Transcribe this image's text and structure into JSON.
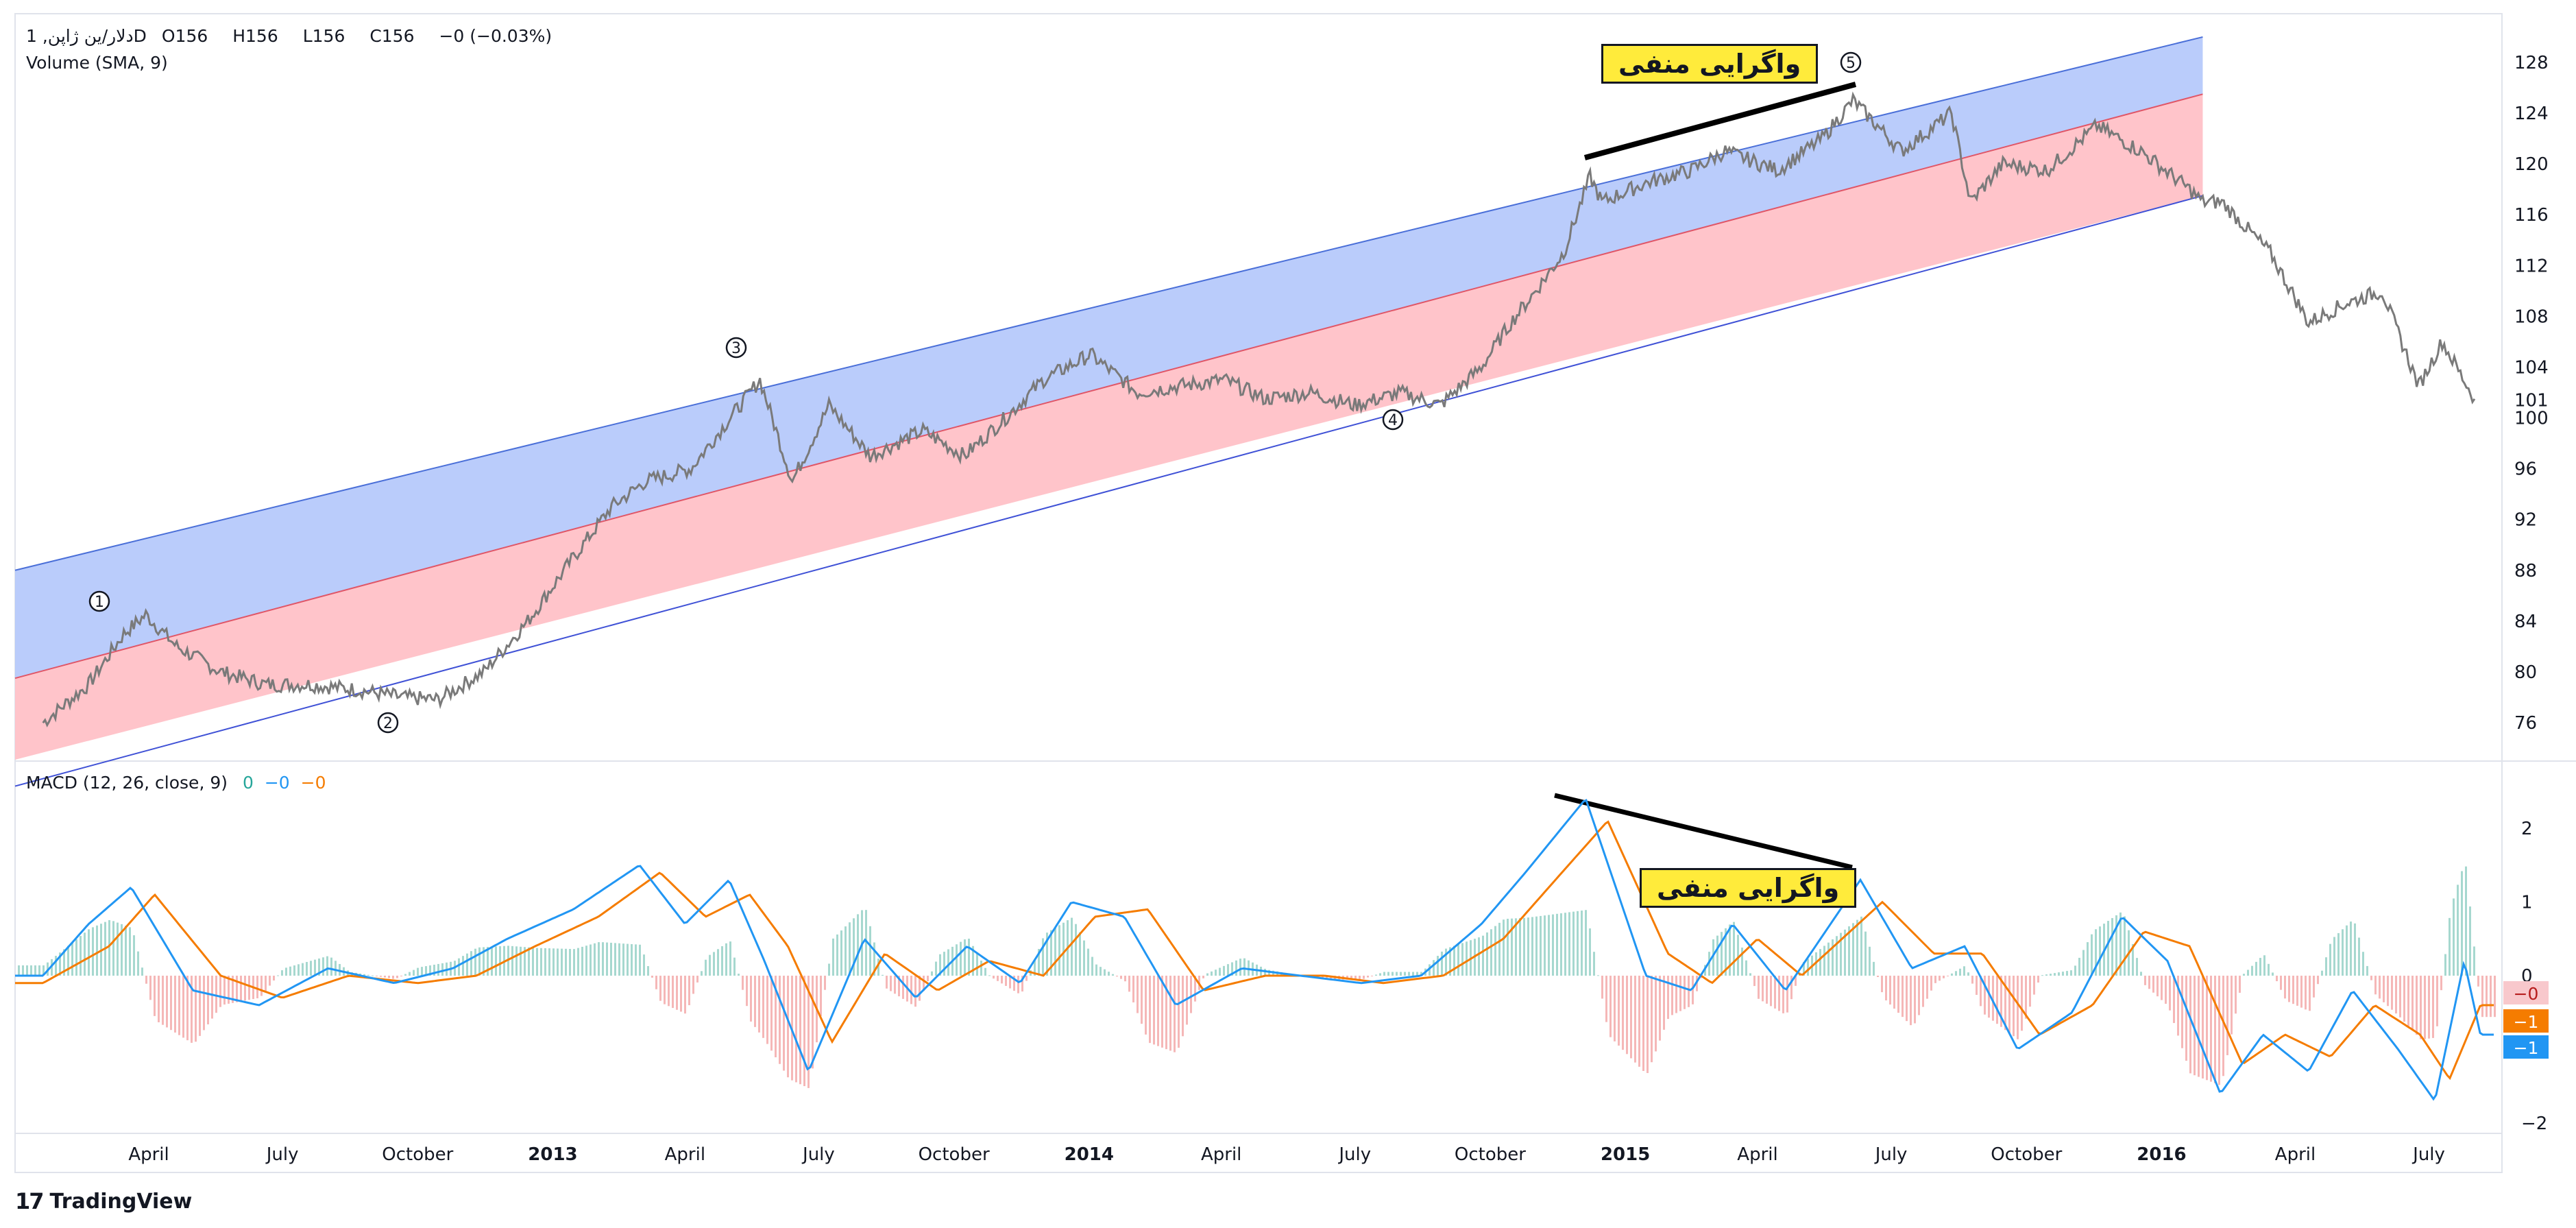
{
  "legend": {
    "symbol": "دلار/ین ژاپن, 1D",
    "o_label": "O",
    "o_value": "156",
    "h_label": "H",
    "h_value": "156",
    "l_label": "L",
    "l_value": "156",
    "c_label": "C",
    "c_value": "156",
    "change": "−0 (−0.03%)",
    "volume": "Volume (SMA, 9)",
    "macd": "MACD (12, 26, close, 9)",
    "macd_v1": "0",
    "macd_v2": "−0",
    "macd_v3": "−0"
  },
  "annotations": {
    "neg_div_top": "واگرایی منفی",
    "neg_div_bottom": "واگرایی منفی"
  },
  "footer": {
    "brand": "TradingView",
    "logo": "17"
  },
  "colors": {
    "price": "#7a7a7a",
    "channel_upper": "#b3c6fb",
    "channel_lower": "#ffc1c7",
    "macd_line": "#2196f3",
    "signal_line": "#f57c00",
    "hist_pos": "#a6d8cf",
    "hist_neg": "#f5b7b7"
  },
  "chart_data": [
    {
      "type": "line",
      "series": [
        {
          "name": "دلار/ین ژاپن",
          "x": [
            "2012-01-20",
            "2012-02-20",
            "2012-03-15",
            "2012-03-30",
            "2012-04-20",
            "2012-05-20",
            "2012-06-20",
            "2012-07-20",
            "2012-08-20",
            "2012-09-20",
            "2012-10-15",
            "2012-11-15",
            "2012-12-15",
            "2013-01-15",
            "2013-02-10",
            "2013-03-05",
            "2013-04-05",
            "2013-04-25",
            "2013-05-22",
            "2013-06-13",
            "2013-07-08",
            "2013-08-05",
            "2013-09-10",
            "2013-10-08",
            "2013-11-05",
            "2013-12-01",
            "2014-01-02",
            "2014-02-03",
            "2014-03-03",
            "2014-04-03",
            "2014-05-01",
            "2014-06-01",
            "2014-07-01",
            "2014-08-01",
            "2014-08-28",
            "2014-09-25",
            "2014-10-15",
            "2014-11-01",
            "2014-11-20",
            "2014-12-08",
            "2014-12-16",
            "2015-01-15",
            "2015-02-15",
            "2015-03-10",
            "2015-04-15",
            "2015-05-15",
            "2015-06-05",
            "2015-07-08",
            "2015-08-11",
            "2015-08-24",
            "2015-09-15",
            "2015-10-15",
            "2015-11-18",
            "2015-12-18",
            "2016-01-20",
            "2016-01-29",
            "2016-02-11",
            "2016-03-15",
            "2016-04-10",
            "2016-05-05",
            "2016-05-30",
            "2016-06-24",
            "2016-07-10",
            "2016-08-01"
          ],
          "values": [
            76,
            79,
            83,
            84.5,
            82,
            80,
            79,
            79,
            78.6,
            78,
            77.8,
            80,
            84,
            89,
            93,
            95,
            96,
            99,
            103,
            95,
            101,
            97,
            99,
            97,
            100,
            103,
            105,
            102,
            102.5,
            103,
            101.5,
            102,
            101,
            102,
            101,
            104,
            107.5,
            110,
            113,
            119,
            117,
            118.5,
            119.5,
            121,
            119.5,
            122,
            125,
            121,
            124,
            117,
            120,
            119.5,
            123,
            121,
            118,
            117,
            117,
            113,
            107.5,
            109,
            110,
            102.5,
            106,
            101.5
          ]
        }
      ],
      "y_ticks": [
        76,
        80,
        84,
        88,
        92,
        96,
        100,
        104,
        108,
        112,
        116,
        120,
        124,
        128
      ],
      "last_value": "101",
      "x_ticks": [
        "April",
        "July",
        "October",
        "2013",
        "April",
        "July",
        "October",
        "2014",
        "April",
        "July",
        "October",
        "2015",
        "April",
        "July",
        "October",
        "2016",
        "April",
        "July"
      ],
      "wave_labels": [
        "1",
        "2",
        "3",
        "4",
        "5"
      ],
      "channel": {
        "upper_start": 88,
        "upper_end": 130,
        "mid_start": 79.5,
        "mid_end": 125.5,
        "lower_start": 71,
        "lower_end": 117.5
      }
    },
    {
      "type": "line",
      "title": "MACD (12, 26, close, 9)",
      "series": [
        {
          "name": "MACD",
          "x": [
            "2012-01-20",
            "2012-02-20",
            "2012-03-20",
            "2012-05-01",
            "2012-06-15",
            "2012-08-01",
            "2012-09-15",
            "2012-10-25",
            "2012-12-01",
            "2013-01-15",
            "2013-03-01",
            "2013-04-01",
            "2013-05-01",
            "2013-05-25",
            "2013-06-24",
            "2013-08-01",
            "2013-09-05",
            "2013-10-10",
            "2013-11-15",
            "2013-12-20",
            "2014-01-25",
            "2014-03-01",
            "2014-04-15",
            "2014-05-25",
            "2014-07-05",
            "2014-08-15",
            "2014-09-25",
            "2014-10-25",
            "2014-12-05",
            "2015-01-15",
            "2015-02-15",
            "2015-03-15",
            "2015-04-20",
            "2015-06-10",
            "2015-07-15",
            "2015-08-20",
            "2015-09-25",
            "2015-11-01",
            "2015-12-05",
            "2016-01-05",
            "2016-02-10",
            "2016-03-10",
            "2016-04-10",
            "2016-05-10",
            "2016-06-10",
            "2016-07-05",
            "2016-07-25",
            "2016-08-05"
          ],
          "values": [
            0,
            0.7,
            1.2,
            -0.2,
            -0.4,
            0.1,
            -0.1,
            0.1,
            0.5,
            0.9,
            1.5,
            0.7,
            1.3,
            0.2,
            -1.3,
            0.5,
            -0.3,
            0.4,
            -0.1,
            1.0,
            0.8,
            -0.4,
            0.1,
            0.0,
            -0.1,
            0.0,
            0.7,
            1.4,
            2.4,
            0.0,
            -0.2,
            0.7,
            -0.2,
            1.3,
            0.1,
            0.4,
            -1.0,
            -0.5,
            0.8,
            0.2,
            -1.6,
            -0.8,
            -1.3,
            -0.2,
            -1.0,
            -1.7,
            0.2,
            -0.8
          ]
        },
        {
          "name": "Signal",
          "x": [
            "2012-01-20",
            "2012-03-05",
            "2012-04-05",
            "2012-05-20",
            "2012-07-01",
            "2012-08-15",
            "2012-10-01",
            "2012-11-10",
            "2012-12-20",
            "2013-02-01",
            "2013-03-15",
            "2013-04-15",
            "2013-05-15",
            "2013-06-10",
            "2013-07-10",
            "2013-08-15",
            "2013-09-20",
            "2013-10-25",
            "2013-12-01",
            "2014-01-05",
            "2014-02-10",
            "2014-03-20",
            "2014-05-01",
            "2014-06-10",
            "2014-07-20",
            "2014-08-30",
            "2014-10-10",
            "2014-11-10",
            "2014-12-20",
            "2015-01-30",
            "2015-03-01",
            "2015-04-01",
            "2015-05-01",
            "2015-06-25",
            "2015-07-30",
            "2015-09-01",
            "2015-10-10",
            "2015-11-15",
            "2015-12-20",
            "2016-01-20",
            "2016-02-25",
            "2016-03-25",
            "2016-04-25",
            "2016-05-25",
            "2016-06-25",
            "2016-07-15",
            "2016-08-05"
          ],
          "values": [
            -0.1,
            0.4,
            1.1,
            0.0,
            -0.3,
            0.0,
            -0.1,
            0.0,
            0.4,
            0.8,
            1.4,
            0.8,
            1.1,
            0.4,
            -0.9,
            0.3,
            -0.2,
            0.2,
            0.0,
            0.8,
            0.9,
            -0.2,
            0.0,
            0.0,
            -0.1,
            0.0,
            0.5,
            1.2,
            2.1,
            0.3,
            -0.1,
            0.5,
            0.0,
            1.0,
            0.3,
            0.3,
            -0.8,
            -0.4,
            0.6,
            0.4,
            -1.2,
            -0.8,
            -1.1,
            -0.4,
            -0.8,
            -1.4,
            -0.4
          ]
        }
      ],
      "y_ticks": [
        -2,
        -1,
        0,
        1,
        2
      ],
      "last_value_labels": [
        "−0",
        "−1",
        "−1"
      ]
    }
  ]
}
